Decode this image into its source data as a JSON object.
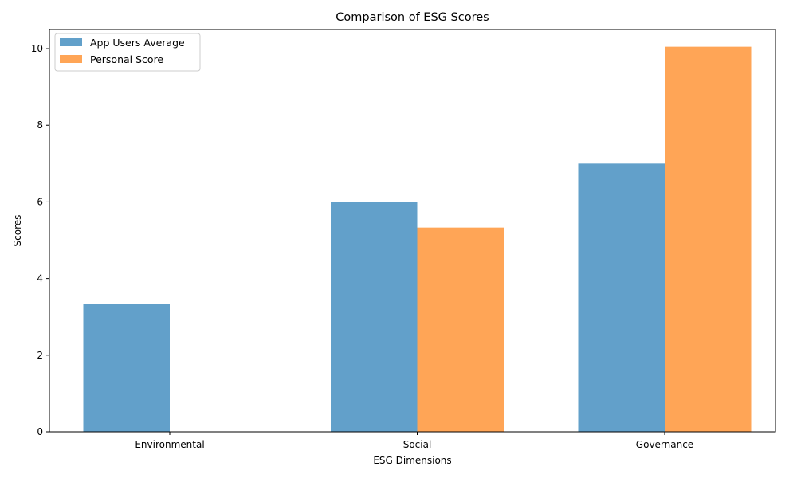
{
  "chart_data": {
    "type": "bar",
    "title": "Comparison of ESG Scores",
    "xlabel": "ESG Dimensions",
    "ylabel": "Scores",
    "categories": [
      "Environmental",
      "Social",
      "Governance"
    ],
    "series": [
      {
        "name": "App Users Average",
        "values": [
          3.33,
          6.0,
          7.0
        ],
        "color": "#1f77b4"
      },
      {
        "name": "Personal Score",
        "values": [
          0,
          5.33,
          10.05
        ],
        "color": "#ff7f0e"
      }
    ],
    "ylim": [
      0,
      10.5
    ],
    "yticks": [
      0,
      2,
      4,
      6,
      8,
      10
    ],
    "bar_opacity": 0.7,
    "legend": "top-left",
    "grid": false
  }
}
